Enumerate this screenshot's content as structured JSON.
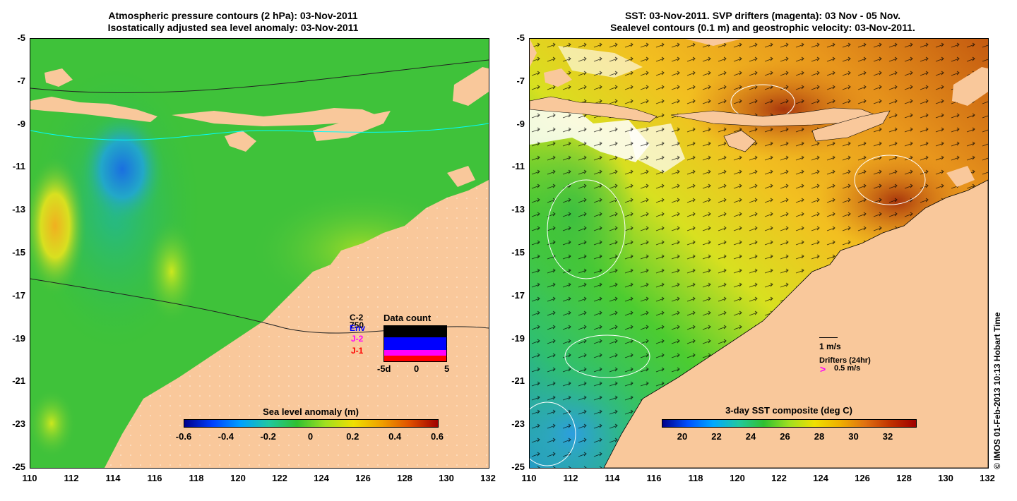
{
  "left_panel": {
    "title_line1": "Atmospheric pressure contours (2 hPa): 03-Nov-2011",
    "title_line2": "Isostatically adjusted sea level anomaly: 03-Nov-2011",
    "colorbar_title": "Sea level anomaly (m)",
    "colorbar_ticks": [
      "-0.6",
      "-0.4",
      "-0.2",
      "0",
      "0.2",
      "0.4",
      "0.6"
    ],
    "legend": {
      "satellites": [
        {
          "label": "C-2",
          "color": "#000000"
        },
        {
          "label": "750",
          "color": "#000000"
        },
        {
          "label": "Env",
          "color": "#0000ff"
        },
        {
          "label": "J-2",
          "color": "#ff00ff"
        },
        {
          "label": "J-1",
          "color": "#ff0000"
        }
      ],
      "data_count_title": "Data count",
      "data_count_ticks": [
        "-5d",
        "0",
        "5"
      ]
    }
  },
  "right_panel": {
    "title_line1": "SST: 03-Nov-2011. SVP drifters (magenta): 03 Nov - 05 Nov.",
    "title_line2": "Sealevel contours (0.1 m) and geostrophic velocity: 03-Nov-2011.",
    "colorbar_title": "3-day SST composite (deg C)",
    "colorbar_ticks": [
      "20",
      "22",
      "24",
      "26",
      "28",
      "30",
      "32"
    ],
    "velocity_scale_label": "1 m/s",
    "drifters_label": "Drifters (24hr)",
    "drifter_speed_label": "0.5 m/s",
    "drifter_marker": ">"
  },
  "axes": {
    "y_ticks": [
      "-5",
      "-7",
      "-9",
      "-11",
      "-13",
      "-15",
      "-17",
      "-19",
      "-21",
      "-23",
      "-25"
    ],
    "x_ticks": [
      "110",
      "112",
      "114",
      "116",
      "118",
      "120",
      "122",
      "124",
      "126",
      "128",
      "130",
      "132"
    ],
    "lon_range": [
      110,
      132
    ],
    "lat_range": [
      -25,
      -5
    ]
  },
  "credit": "© IMOS 01-Feb-2013 10:13 Hobart Time",
  "colors": {
    "land": "#f9c89b",
    "sla_mid": "#33cc33",
    "sst_warm": "#e08a1e",
    "drifter": "#ff00ff"
  }
}
